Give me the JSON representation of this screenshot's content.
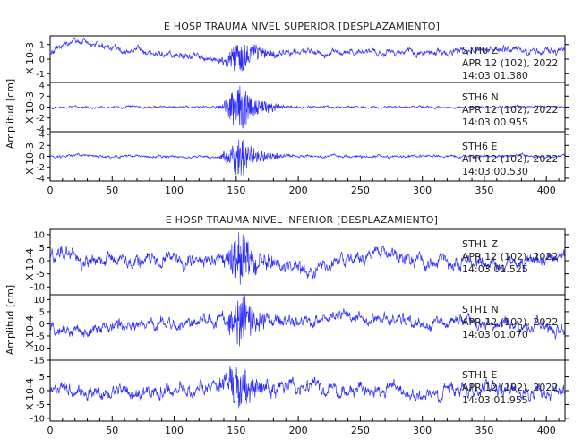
{
  "chart_data": [
    {
      "type": "line",
      "title": "E HOSP TRAUMA NIVEL SUPERIOR [DESPLAZAMIENTO]",
      "ylabel": "Amplitud [cm]",
      "x_ticks": [
        "0",
        "50",
        "100",
        "150",
        "200",
        "250",
        "300",
        "350",
        "400"
      ],
      "xlim": [
        0,
        415
      ],
      "panels": [
        {
          "name": "STH6  Z",
          "scale_label": "X 10-3",
          "date": "APR 12 (102), 2022",
          "time": "14:03:01.380",
          "ylim": [
            -1.6,
            1.6
          ],
          "y_ticks": [
            "1",
            "0",
            "-1"
          ],
          "y_tick_values": [
            1,
            0,
            -1
          ],
          "base": 0.25,
          "noise": 0.28,
          "burst": 0.9,
          "drift": [
            [
              0,
              0.2
            ],
            [
              20,
              1.0
            ],
            [
              50,
              0.5
            ],
            [
              80,
              0.2
            ],
            [
              110,
              -0.1
            ],
            [
              140,
              -0.3
            ],
            [
              170,
              0.2
            ],
            [
              200,
              0.1
            ],
            [
              250,
              0.2
            ],
            [
              300,
              0.3
            ],
            [
              350,
              0.4
            ],
            [
              415,
              0.3
            ]
          ]
        },
        {
          "name": "STH6  N",
          "scale_label": "X 10-3",
          "date": "APR 12 (102), 2022",
          "time": "14:03:00.955",
          "ylim": [
            -4.5,
            4.5
          ],
          "y_ticks": [
            "4",
            "2",
            "0",
            "-2",
            "-4"
          ],
          "y_tick_values": [
            4,
            2,
            0,
            -2,
            -4
          ],
          "base": 0,
          "noise": 0.25,
          "burst": 3.4,
          "drift": [
            [
              0,
              0
            ],
            [
              415,
              0
            ]
          ]
        },
        {
          "name": "STH6  E",
          "scale_label": "X 10-3",
          "date": "APR 12 (102), 2022",
          "time": "14:03:00.530",
          "ylim": [
            -4.5,
            4.5
          ],
          "y_ticks": [
            "4",
            "2",
            "0",
            "-2",
            "-4"
          ],
          "y_tick_values": [
            4,
            2,
            0,
            -2,
            -4
          ],
          "base": 0,
          "noise": 0.3,
          "burst": 3.0,
          "drift": [
            [
              0,
              0
            ],
            [
              415,
              0
            ]
          ]
        }
      ]
    },
    {
      "type": "line",
      "title": "E HOSP TRAUMA NIVEL INFERIOR [DESPLAZAMIENTO]",
      "ylabel": "Amplitud [cm]",
      "x_ticks": [
        "0",
        "50",
        "100",
        "150",
        "200",
        "250",
        "300",
        "350",
        "400"
      ],
      "xlim": [
        0,
        415
      ],
      "panels": [
        {
          "name": "STH1  Z",
          "scale_label": "X 10-4",
          "date": "APR 12 (102), 2022",
          "time": "14:03:01.525",
          "ylim": [
            -13,
            12
          ],
          "y_ticks": [
            "10",
            "5",
            "0",
            "-5",
            "-10"
          ],
          "y_tick_values": [
            10,
            5,
            0,
            -5,
            -10
          ],
          "base": 0,
          "noise": 3.2,
          "burst": 7.5,
          "drift": [
            [
              0,
              5
            ],
            [
              15,
              5
            ],
            [
              30,
              -2
            ],
            [
              60,
              0
            ],
            [
              100,
              -1
            ],
            [
              150,
              2
            ],
            [
              190,
              -4
            ],
            [
              210,
              -8
            ],
            [
              240,
              2
            ],
            [
              260,
              5
            ],
            [
              300,
              0
            ],
            [
              350,
              -2
            ],
            [
              415,
              0
            ]
          ]
        },
        {
          "name": "STH1  N",
          "scale_label": "X 10-4",
          "date": "APR 12 (102), 2022",
          "time": "14:03:01.070",
          "ylim": [
            -15,
            12
          ],
          "y_ticks": [
            "10",
            "5",
            "0",
            "-5",
            "-10",
            "-15"
          ],
          "y_tick_values": [
            10,
            5,
            0,
            -5,
            -10,
            -15
          ],
          "base": 0,
          "noise": 3.0,
          "burst": 8.5,
          "drift": [
            [
              0,
              -3
            ],
            [
              30,
              -4
            ],
            [
              60,
              -2
            ],
            [
              100,
              0
            ],
            [
              150,
              3
            ],
            [
              200,
              2
            ],
            [
              260,
              3
            ],
            [
              300,
              0
            ],
            [
              340,
              2
            ],
            [
              380,
              -1
            ],
            [
              415,
              -3
            ]
          ]
        },
        {
          "name": "STH1  E",
          "scale_label": "X 10-4",
          "date": "APR 12 (102), 2022",
          "time": "14:03:01.955",
          "ylim": [
            -11,
            11
          ],
          "y_ticks": [
            "5",
            "0",
            "-5",
            "-10"
          ],
          "y_tick_values": [
            5,
            0,
            -5,
            -10
          ],
          "base": 0,
          "noise": 3.0,
          "burst": 6.0,
          "drift": [
            [
              0,
              0
            ],
            [
              30,
              -2
            ],
            [
              100,
              0
            ],
            [
              150,
              3
            ],
            [
              190,
              2
            ],
            [
              250,
              0
            ],
            [
              300,
              -2
            ],
            [
              360,
              1
            ],
            [
              415,
              -1
            ]
          ]
        }
      ]
    }
  ]
}
